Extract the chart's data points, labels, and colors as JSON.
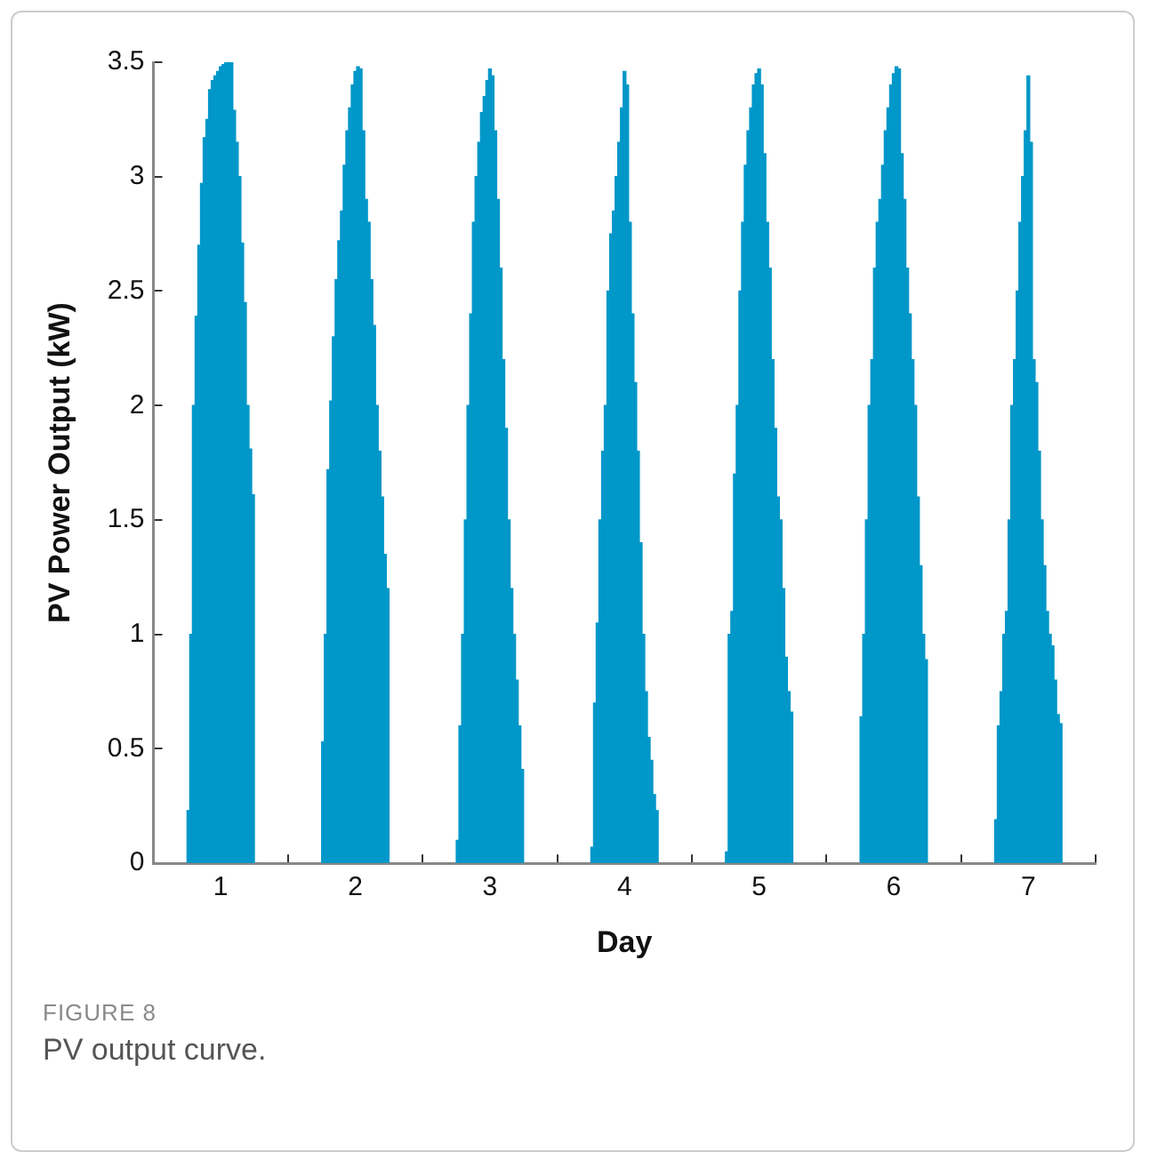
{
  "chart_data": {
    "type": "bar",
    "xlabel": "Day",
    "ylabel": "PV Power Output (kW)",
    "annotations": [
      "FIGURE 8",
      "PV output curve."
    ],
    "xlim": [
      0.5,
      7.5
    ],
    "xticks": [
      1,
      2,
      3,
      4,
      5,
      6,
      7
    ],
    "ylim": [
      0,
      3.5
    ],
    "yticks": [
      0,
      0.5,
      1,
      1.5,
      2,
      2.5,
      3,
      3.5
    ],
    "grid": false,
    "legend": false,
    "x": [
      0.76,
      0.78,
      0.8,
      0.82,
      0.84,
      0.86,
      0.88,
      0.9,
      0.92,
      0.94,
      0.96,
      0.98,
      1.0,
      1.02,
      1.04,
      1.06,
      1.08,
      1.1,
      1.12,
      1.14,
      1.16,
      1.18,
      1.2,
      1.22,
      1.24,
      1.76,
      1.78,
      1.8,
      1.82,
      1.84,
      1.86,
      1.88,
      1.9,
      1.92,
      1.94,
      1.96,
      1.98,
      2.0,
      2.02,
      2.04,
      2.06,
      2.08,
      2.1,
      2.12,
      2.14,
      2.16,
      2.18,
      2.2,
      2.22,
      2.24,
      2.76,
      2.78,
      2.8,
      2.82,
      2.84,
      2.86,
      2.88,
      2.9,
      2.92,
      2.94,
      2.96,
      2.98,
      3.0,
      3.02,
      3.04,
      3.06,
      3.08,
      3.1,
      3.12,
      3.14,
      3.16,
      3.18,
      3.2,
      3.22,
      3.24,
      3.76,
      3.78,
      3.8,
      3.82,
      3.84,
      3.86,
      3.88,
      3.9,
      3.92,
      3.94,
      3.96,
      3.98,
      4.0,
      4.02,
      4.04,
      4.06,
      4.08,
      4.1,
      4.12,
      4.14,
      4.16,
      4.18,
      4.2,
      4.22,
      4.24,
      4.76,
      4.78,
      4.8,
      4.82,
      4.84,
      4.86,
      4.88,
      4.9,
      4.92,
      4.94,
      4.96,
      4.98,
      5.0,
      5.02,
      5.04,
      5.06,
      5.08,
      5.1,
      5.12,
      5.14,
      5.16,
      5.18,
      5.2,
      5.22,
      5.24,
      5.76,
      5.78,
      5.8,
      5.82,
      5.84,
      5.86,
      5.88,
      5.9,
      5.92,
      5.94,
      5.96,
      5.98,
      6.0,
      6.02,
      6.04,
      6.06,
      6.08,
      6.1,
      6.12,
      6.14,
      6.16,
      6.18,
      6.2,
      6.22,
      6.24,
      6.76,
      6.78,
      6.8,
      6.82,
      6.84,
      6.86,
      6.88,
      6.9,
      6.92,
      6.94,
      6.96,
      6.98,
      7.0,
      7.02,
      7.04,
      7.06,
      7.08,
      7.1,
      7.12,
      7.14,
      7.16,
      7.18,
      7.2,
      7.22,
      7.24
    ],
    "series": [
      {
        "color": "#0097c9",
        "values": [
          0.23,
          1.0,
          2.0,
          2.39,
          2.7,
          2.97,
          3.17,
          3.25,
          3.38,
          3.42,
          3.44,
          3.46,
          3.48,
          3.49,
          3.5,
          3.5,
          3.5,
          3.29,
          3.15,
          3.0,
          2.71,
          2.45,
          2.0,
          1.81,
          1.61,
          0.53,
          1.0,
          1.72,
          2.02,
          2.3,
          2.55,
          2.72,
          2.85,
          3.05,
          3.2,
          3.3,
          3.4,
          3.46,
          3.48,
          3.47,
          3.2,
          2.9,
          2.8,
          2.55,
          2.35,
          2.0,
          1.8,
          1.6,
          1.35,
          1.2,
          0.1,
          0.6,
          1.0,
          1.5,
          2.0,
          2.4,
          2.8,
          3.0,
          3.15,
          3.28,
          3.35,
          3.42,
          3.47,
          3.44,
          3.2,
          2.9,
          2.6,
          2.2,
          1.9,
          1.5,
          1.2,
          1.0,
          0.8,
          0.6,
          0.41,
          0.07,
          0.7,
          1.05,
          1.5,
          1.8,
          2.0,
          2.5,
          2.75,
          2.85,
          3.0,
          3.15,
          3.3,
          3.46,
          3.4,
          2.8,
          2.4,
          2.1,
          1.8,
          1.4,
          1.0,
          0.75,
          0.55,
          0.45,
          0.3,
          0.23,
          0.05,
          1.0,
          1.1,
          1.7,
          2.0,
          2.5,
          2.8,
          3.05,
          3.2,
          3.3,
          3.4,
          3.45,
          3.47,
          3.4,
          3.1,
          2.8,
          2.6,
          2.2,
          1.9,
          1.6,
          1.5,
          1.2,
          0.9,
          0.75,
          0.66,
          0.64,
          1.0,
          1.5,
          2.0,
          2.2,
          2.6,
          2.8,
          2.9,
          3.05,
          3.2,
          3.3,
          3.4,
          3.45,
          3.48,
          3.47,
          3.1,
          2.9,
          2.6,
          2.4,
          2.2,
          2.0,
          1.6,
          1.3,
          1.0,
          0.89,
          0.19,
          0.6,
          0.75,
          1.0,
          1.1,
          1.5,
          2.0,
          2.2,
          2.5,
          2.8,
          3.0,
          3.2,
          3.44,
          3.15,
          2.2,
          2.1,
          1.8,
          1.5,
          1.3,
          1.1,
          1.0,
          0.95,
          0.8,
          0.65,
          0.61
        ]
      }
    ]
  }
}
